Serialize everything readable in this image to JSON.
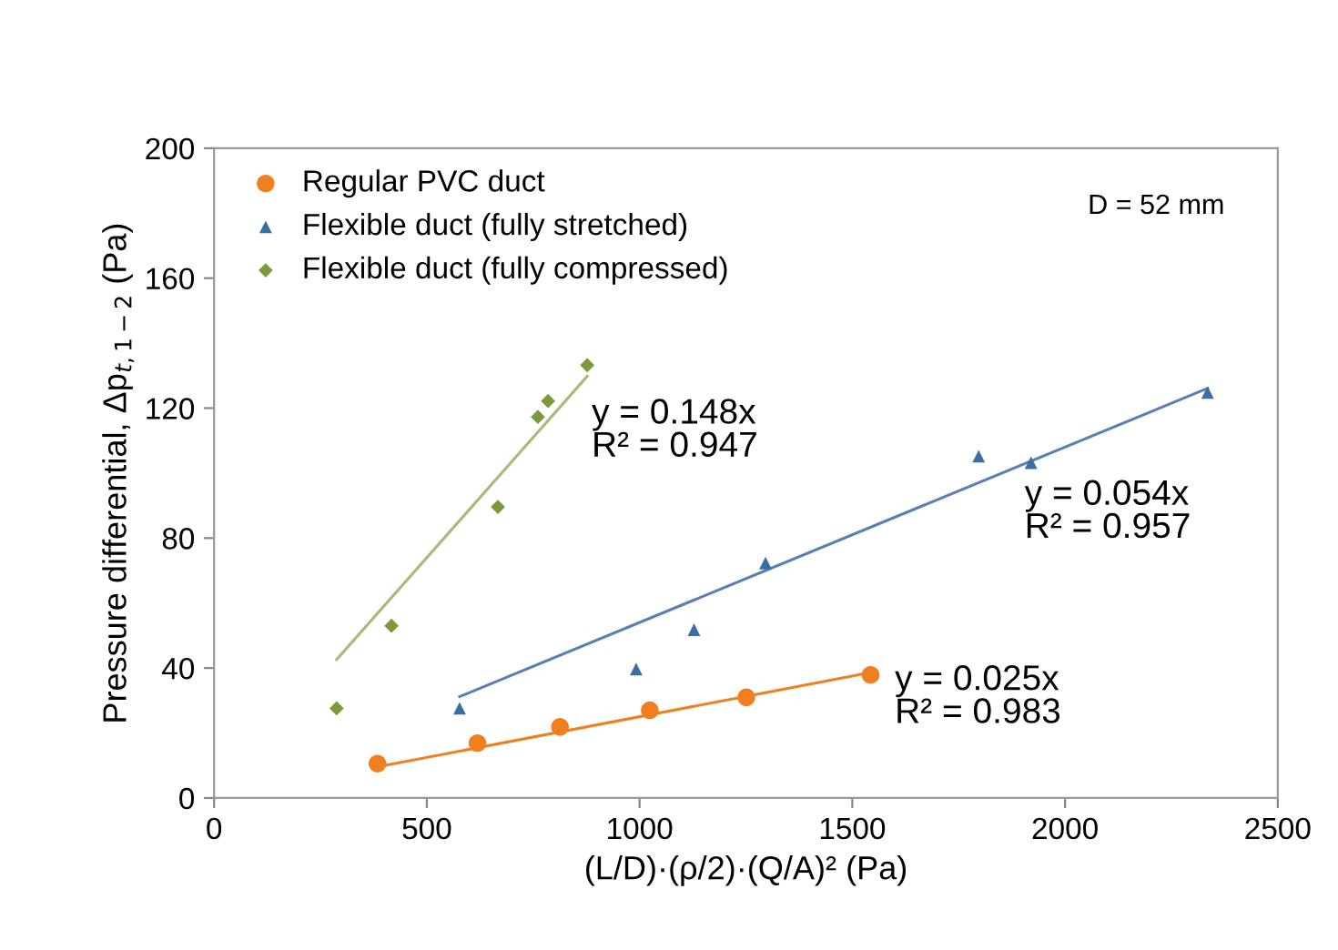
{
  "chart_data": {
    "type": "scatter",
    "xlabel": "(L/D)·(ρ/2)·(Q/A)² (Pa)",
    "ylabel": "Pressure differential, Δp$_{t,1−2}$ (Pa)",
    "xlim": [
      0,
      2500
    ],
    "xticks": [
      0,
      500,
      1000,
      1500,
      2000,
      2500
    ],
    "ylim": [
      0,
      200
    ],
    "yticks": [
      0,
      40,
      80,
      120,
      160,
      200
    ],
    "grid": false,
    "legend": "top left",
    "series": [
      {
        "name": "Regular PVC duct",
        "marker": "circle",
        "color": "#f07f1f",
        "x": [
          384,
          619,
          813,
          1024,
          1251,
          1543
        ],
        "values": [
          10.6,
          16.9,
          21.9,
          27,
          31,
          37.9
        ]
      },
      {
        "name": "Flexible duct (fully stretched)",
        "marker": "triangle",
        "color": "#3a6ea5",
        "x": [
          577,
          992,
          1128,
          1296,
          1797,
          1920,
          2335
        ],
        "values": [
          27.6,
          39.7,
          51.8,
          72.3,
          105.2,
          103.2,
          124.8
        ]
      },
      {
        "name": "Flexible duct (fully compressed)",
        "marker": "diamond",
        "color": "#7a9a3c",
        "x": [
          288,
          417,
          667,
          761,
          785,
          877
        ],
        "values": [
          27.6,
          53,
          89.6,
          117.3,
          122.2,
          133.2
        ]
      },
      {
        "type": "line",
        "color": "#f07f1f",
        "x": [
          384,
          1543
        ],
        "values": [
          9.6,
          38.6
        ]
      },
      {
        "type": "line",
        "color": "#5a7fb5",
        "x": [
          577,
          2335
        ],
        "values": [
          31.2,
          126.1
        ]
      },
      {
        "type": "line",
        "color": "#a8b97a",
        "x": [
          288,
          877
        ],
        "values": [
          42.6,
          129.8
        ]
      }
    ],
    "annotations": [
      "D = 52 mm",
      "y = 0.148x\nR² = 0.947",
      "y = 0.054x\nR² = 0.957",
      "y = 0.025x\nR² = 0.983"
    ]
  }
}
